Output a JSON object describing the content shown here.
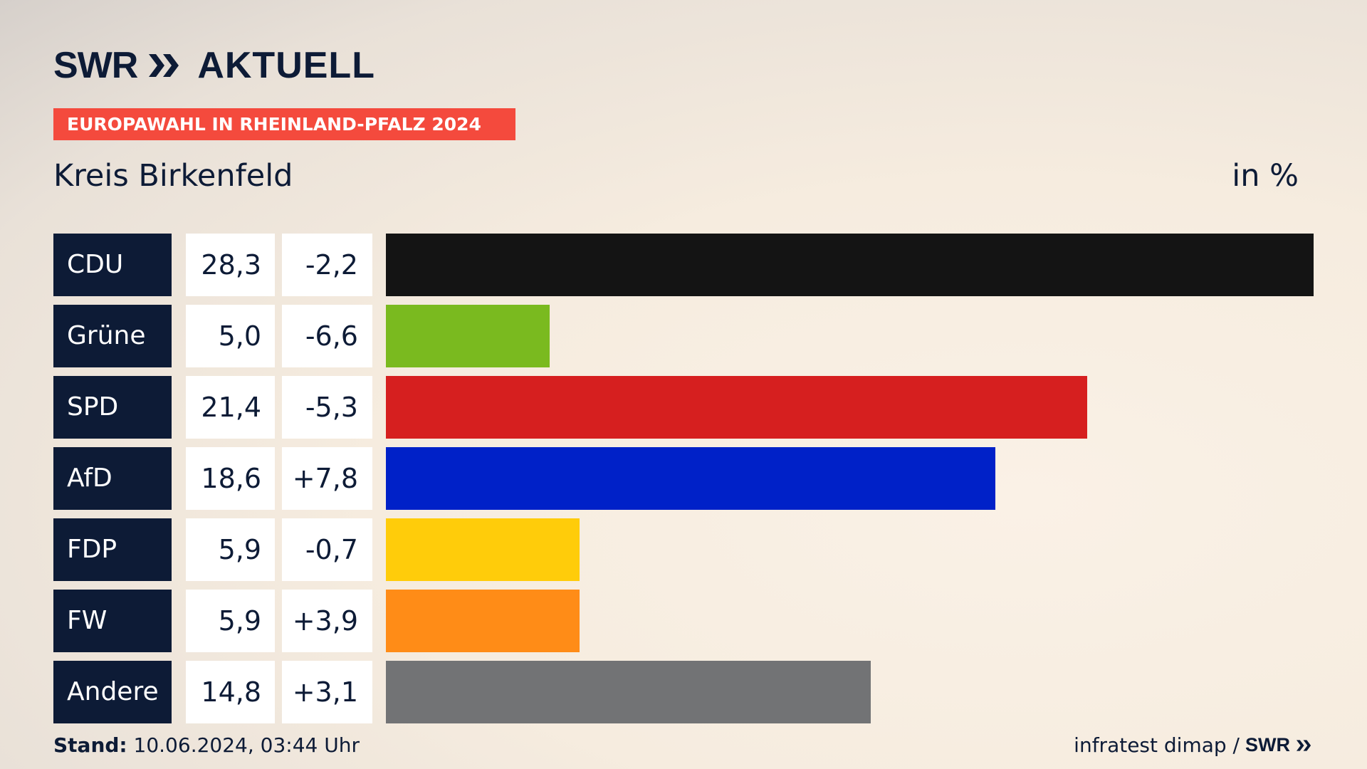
{
  "header": {
    "logo_swr": "SWR",
    "logo_aktuell": "AKTUELL",
    "banner": "EUROPAWAHL IN RHEINLAND-PFALZ 2024",
    "region": "Kreis Birkenfeld",
    "unit": "in %"
  },
  "footer": {
    "stand_label": "Stand:",
    "stand_value": "10.06.2024, 03:44 Uhr",
    "source": "infratest dimap /",
    "source_logo": "SWR"
  },
  "colors": {
    "navy": "#0d1b36",
    "banner": "#f44a3d"
  },
  "chart_data": {
    "type": "bar",
    "orientation": "horizontal",
    "categories": [
      "CDU",
      "Grüne",
      "SPD",
      "AfD",
      "FDP",
      "FW",
      "Andere"
    ],
    "values": [
      28.3,
      5.0,
      21.4,
      18.6,
      5.9,
      5.9,
      14.8
    ],
    "value_labels": [
      "28,3",
      "5,0",
      "21,4",
      "18,6",
      "5,9",
      "5,9",
      "14,8"
    ],
    "diff_labels": [
      "-2,2",
      "-6,6",
      "-5,3",
      "+7,8",
      "-0,7",
      "+3,9",
      "+3,1"
    ],
    "diffs": [
      -2.2,
      -6.6,
      -5.3,
      7.8,
      -0.7,
      3.9,
      3.1
    ],
    "bar_colors": [
      "#141414",
      "#7aba1f",
      "#d61f1f",
      "#0021c8",
      "#ffcc0a",
      "#ff8c17",
      "#727375"
    ],
    "xlim": [
      0,
      28.3
    ],
    "grid": false
  }
}
